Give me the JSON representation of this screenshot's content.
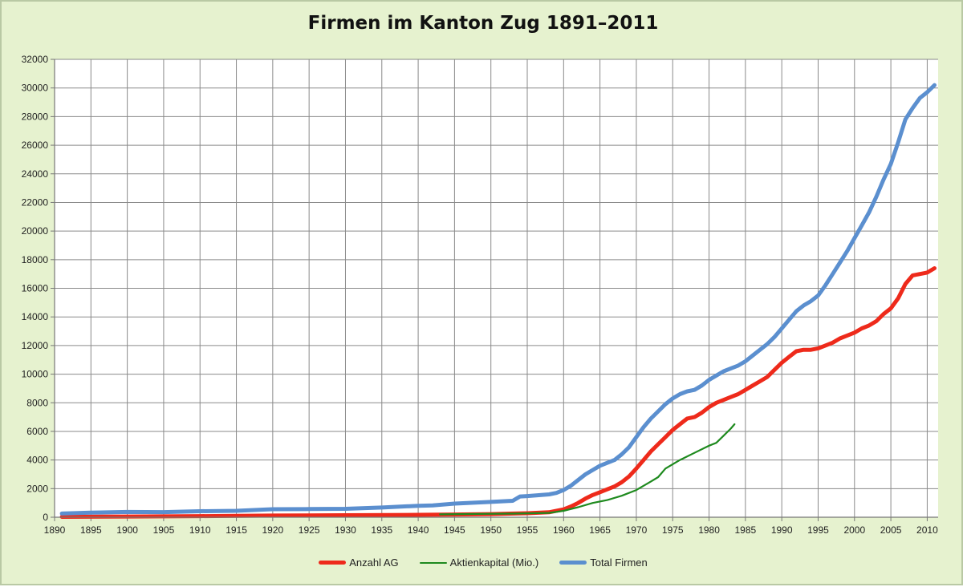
{
  "chart_data": {
    "type": "line",
    "title": "Firmen im Kanton Zug 1891–2011",
    "xlabel": "",
    "ylabel": "",
    "xlim": [
      1890,
      2011.5
    ],
    "ylim": [
      0,
      32000
    ],
    "xticks": [
      "1890",
      "1895",
      "1900",
      "1905",
      "1910",
      "1915",
      "1920",
      "1925",
      "1930",
      "1935",
      "1940",
      "1945",
      "1950",
      "1955",
      "1960",
      "1965",
      "1970",
      "1975",
      "1980",
      "1985",
      "1990",
      "1995",
      "2000",
      "2005",
      "2010"
    ],
    "yticks": [
      "0",
      "2000",
      "4000",
      "6000",
      "8000",
      "10000",
      "12000",
      "14000",
      "16000",
      "18000",
      "20000",
      "22000",
      "24000",
      "26000",
      "28000",
      "30000",
      "32000"
    ],
    "grid": true,
    "legend_position": "bottom",
    "series": [
      {
        "name": "Anzahl AG",
        "color": "#ee2a1b",
        "x": [
          1891,
          1900,
          1910,
          1920,
          1930,
          1940,
          1945,
          1950,
          1955,
          1958,
          1960,
          1961,
          1962,
          1963,
          1964,
          1965,
          1966,
          1967,
          1968,
          1969,
          1970,
          1971,
          1972,
          1973,
          1974,
          1975,
          1976,
          1977,
          1978,
          1979,
          1980,
          1981,
          1982,
          1983,
          1984,
          1985,
          1986,
          1987,
          1988,
          1989,
          1990,
          1991,
          1992,
          1993,
          1994,
          1995,
          1996,
          1997,
          1998,
          1999,
          2000,
          2001,
          2002,
          2003,
          2004,
          2005,
          2006,
          2007,
          2008,
          2009,
          2010,
          2011
        ],
        "values": [
          30,
          50,
          80,
          120,
          140,
          170,
          190,
          220,
          280,
          350,
          550,
          750,
          1000,
          1300,
          1550,
          1750,
          1950,
          2150,
          2450,
          2850,
          3400,
          4000,
          4600,
          5100,
          5600,
          6100,
          6500,
          6900,
          7000,
          7300,
          7700,
          8000,
          8200,
          8400,
          8600,
          8900,
          9200,
          9500,
          9800,
          10300,
          10800,
          11200,
          11600,
          11700,
          11700,
          11800,
          12000,
          12200,
          12500,
          12700,
          12900,
          13200,
          13400,
          13700,
          14200,
          14600,
          15300,
          16300,
          16900,
          17000,
          17100,
          17400
        ]
      },
      {
        "name": "Aktienkapital (Mio.)",
        "color": "#1e8a1e",
        "x": [
          1943,
          1948,
          1953,
          1958,
          1960,
          1962,
          1964,
          1966,
          1968,
          1970,
          1972,
          1973,
          1974,
          1976,
          1978,
          1980,
          1981,
          1982,
          1983,
          1983.5
        ],
        "values": [
          200,
          230,
          250,
          300,
          450,
          700,
          1000,
          1200,
          1500,
          1900,
          2500,
          2800,
          3400,
          4000,
          4500,
          5000,
          5200,
          5700,
          6200,
          6500
        ]
      },
      {
        "name": "Total Firmen",
        "color": "#5b8fcf",
        "x": [
          1891,
          1895,
          1900,
          1905,
          1910,
          1915,
          1919,
          1920,
          1925,
          1930,
          1935,
          1940,
          1942,
          1945,
          1950,
          1953,
          1954,
          1955,
          1958,
          1959,
          1960,
          1961,
          1962,
          1963,
          1964,
          1965,
          1966,
          1967,
          1968,
          1969,
          1970,
          1971,
          1972,
          1973,
          1974,
          1975,
          1976,
          1977,
          1978,
          1979,
          1980,
          1981,
          1982,
          1983,
          1984,
          1985,
          1986,
          1987,
          1988,
          1989,
          1990,
          1991,
          1992,
          1993,
          1994,
          1995,
          1996,
          1997,
          1998,
          1999,
          2000,
          2001,
          2002,
          2003,
          2004,
          2005,
          2006,
          2007,
          2008,
          2009,
          2010,
          2011
        ],
        "values": [
          260,
          320,
          370,
          360,
          420,
          450,
          540,
          560,
          570,
          590,
          680,
          800,
          830,
          950,
          1070,
          1150,
          1450,
          1480,
          1600,
          1700,
          1900,
          2200,
          2600,
          3000,
          3300,
          3600,
          3800,
          4000,
          4400,
          4900,
          5600,
          6300,
          6900,
          7400,
          7900,
          8300,
          8600,
          8800,
          8900,
          9200,
          9600,
          9900,
          10200,
          10400,
          10600,
          10900,
          11300,
          11700,
          12100,
          12600,
          13200,
          13800,
          14400,
          14800,
          15100,
          15500,
          16200,
          17000,
          17800,
          18600,
          19500,
          20400,
          21300,
          22400,
          23600,
          24700,
          26200,
          27800,
          28600,
          29300,
          29700,
          30200
        ]
      }
    ]
  }
}
